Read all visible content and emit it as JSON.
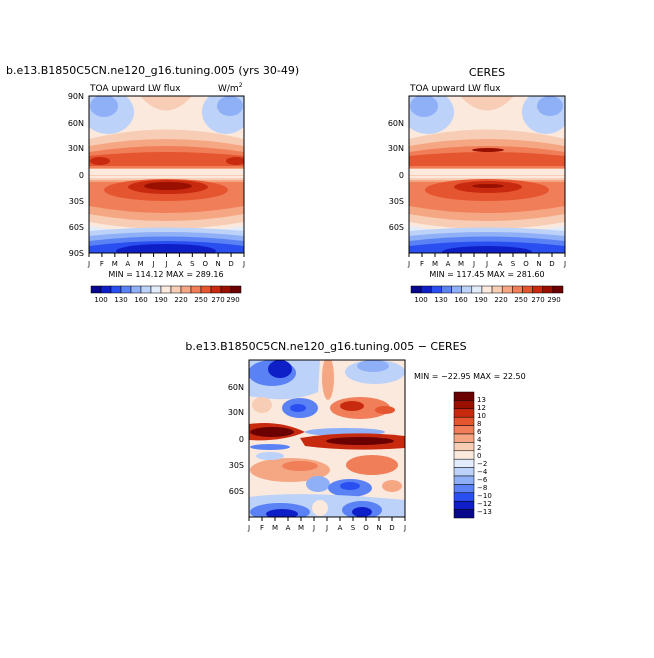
{
  "chart_data": [
    {
      "type": "heatmap",
      "id": "model",
      "title": "b.e13.B1850C5CN.ne120_g16.tuning.005 (yrs 30-49)",
      "subtitle_left": "TOA upward LW flux",
      "units": "W/m",
      "units_sup": "2",
      "x_ticks": [
        "J",
        "F",
        "M",
        "A",
        "M",
        "J",
        "J",
        "A",
        "S",
        "O",
        "N",
        "D",
        "J"
      ],
      "y_ticks": [
        "90N",
        "60N",
        "30N",
        "0",
        "30S",
        "60S",
        "90S"
      ],
      "y_values": [
        90,
        60,
        30,
        0,
        -30,
        -60,
        -90
      ],
      "ylim": [
        -90,
        90
      ],
      "stats": "MIN = 114.12 MAX = 289.16",
      "min": 114.12,
      "max": 289.16,
      "colorbar_labels": [
        "100",
        "130",
        "160",
        "190",
        "220",
        "250",
        "270",
        "290"
      ]
    },
    {
      "type": "heatmap",
      "id": "obs",
      "title": "CERES",
      "subtitle_left": "TOA upward LW flux",
      "x_ticks": [
        "J",
        "F",
        "M",
        "A",
        "M",
        "J",
        "J",
        "A",
        "S",
        "O",
        "N",
        "D",
        "J"
      ],
      "y_ticks": [
        "60N",
        "30N",
        "0",
        "30S",
        "60S"
      ],
      "y_values": [
        60,
        30,
        0,
        -30,
        -60
      ],
      "ylim": [
        -90,
        90
      ],
      "stats": "MIN = 117.45 MAX = 281.60",
      "min": 117.45,
      "max": 281.6,
      "colorbar_labels": [
        "100",
        "130",
        "160",
        "190",
        "220",
        "250",
        "270",
        "290"
      ]
    },
    {
      "type": "heatmap",
      "id": "diff",
      "title": "b.e13.B1850C5CN.ne120_g16.tuning.005 − CERES",
      "x_ticks": [
        "J",
        "F",
        "M",
        "A",
        "M",
        "J",
        "J",
        "A",
        "S",
        "O",
        "N",
        "D",
        "J"
      ],
      "y_ticks": [
        "60N",
        "30N",
        "0",
        "30S",
        "60S"
      ],
      "y_values": [
        60,
        30,
        0,
        -30,
        -60
      ],
      "ylim": [
        -90,
        90
      ],
      "stats": "MIN = −22.95 MAX =  22.50",
      "min": -22.95,
      "max": 22.5,
      "colorbar_labels": [
        "13",
        "12",
        "10",
        "8",
        "6",
        "4",
        "2",
        "0",
        "−2",
        "−4",
        "−6",
        "−8",
        "−10",
        "−12",
        "−13"
      ]
    }
  ],
  "colors": {
    "abs_scale": [
      "#08088c",
      "#0f1fc8",
      "#2a4ff0",
      "#5a82f5",
      "#8fb0f7",
      "#bcd2f8",
      "#e2ecfa",
      "#fbe9de",
      "#f8cdb5",
      "#f5a784",
      "#f07e58",
      "#e45530",
      "#c82a10",
      "#9a1000",
      "#6a0000"
    ],
    "diff_scale": [
      "#6a0000",
      "#9a1000",
      "#c82a10",
      "#e45530",
      "#f07e58",
      "#f5a784",
      "#f8cdb5",
      "#fbe9de",
      "#e2ecfa",
      "#bcd2f8",
      "#8fb0f7",
      "#5a82f5",
      "#2a4ff0",
      "#0f1fc8",
      "#08088c"
    ]
  }
}
